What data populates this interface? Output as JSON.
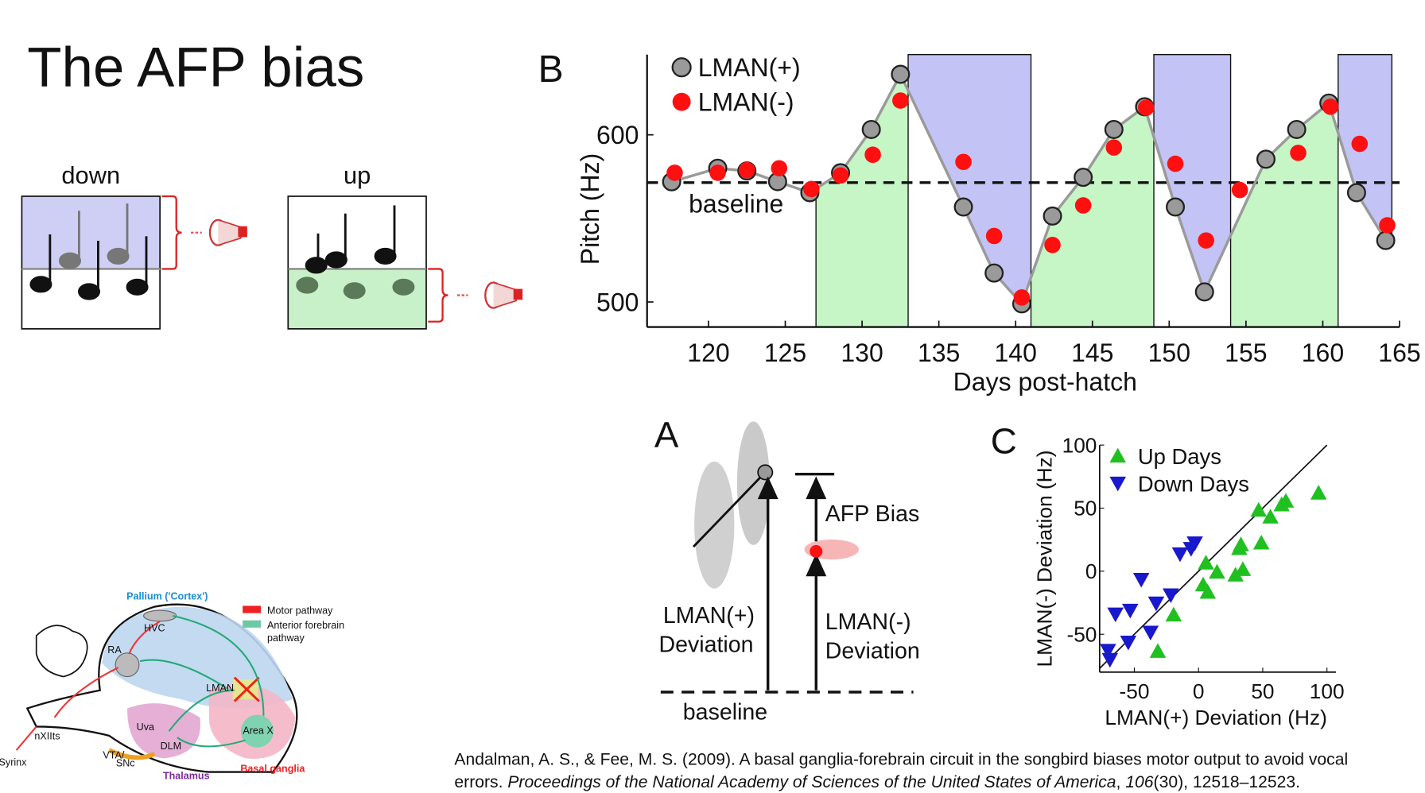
{
  "title": "The AFP bias",
  "schematic": {
    "down_label": "down",
    "up_label": "up"
  },
  "chart_data": [
    {
      "type": "line",
      "label": "B",
      "y_label": "Pitch (Hz)",
      "x_label": "Days post-hatch",
      "xlim": [
        116,
        165
      ],
      "ylim": [
        485,
        648
      ],
      "xticks": [
        120,
        125,
        130,
        135,
        140,
        145,
        150,
        155,
        160,
        165
      ],
      "yticks": [
        500,
        600
      ],
      "baseline": 571.4,
      "baseline_label": "baseline",
      "up_periods": [
        [
          127,
          133
        ],
        [
          141,
          149
        ],
        [
          154,
          161
        ]
      ],
      "down_periods": [
        [
          133,
          141
        ],
        [
          149,
          154
        ],
        [
          161,
          164.5
        ]
      ],
      "up_color": "#c6f5c6",
      "down_color": "#c3c3f5",
      "series": [
        {
          "name": "LMAN(+)",
          "color": "#9a9a9a",
          "connect": true,
          "x": [
            117.6,
            120.6,
            122.5,
            124.5,
            126.6,
            128.6,
            130.6,
            132.5,
            136.6,
            138.6,
            140.4,
            142.4,
            144.4,
            146.4,
            148.4,
            150.4,
            152.3,
            156.3,
            158.3,
            160.4,
            162.2,
            164.1
          ],
          "values": [
            571.9,
            580,
            578.4,
            572,
            565.4,
            577.3,
            603.2,
            636.2,
            556.8,
            517.3,
            498.9,
            551.4,
            574.6,
            603.2,
            616.8,
            556.8,
            506,
            585.4,
            603.2,
            619,
            565.4,
            536.8
          ]
        },
        {
          "name": "LMAN(-)",
          "color": "#ff1010",
          "connect": false,
          "x": [
            117.8,
            120.6,
            122.5,
            124.6,
            126.7,
            128.6,
            130.7,
            132.5,
            136.6,
            138.6,
            140.4,
            142.4,
            144.4,
            146.4,
            148.5,
            150.4,
            152.4,
            154.6,
            158.4,
            160.5,
            162.4,
            164.2
          ],
          "values": [
            577.3,
            577.3,
            578.9,
            580,
            567.6,
            575.7,
            588.1,
            620.5,
            583.8,
            539.5,
            502.7,
            534.1,
            557.8,
            592.4,
            616.2,
            582.7,
            536.8,
            567,
            589.2,
            616.8,
            594.6,
            545.9
          ]
        }
      ]
    },
    {
      "type": "scatter",
      "label": "C",
      "x_label": "LMAN(+) Deviation (Hz)",
      "y_label": "LMAN(-) Deviation (Hz)",
      "xlim": [
        -77,
        107
      ],
      "ylim": [
        -80,
        100
      ],
      "xticks": [
        -50,
        0,
        50,
        100
      ],
      "yticks": [
        -50,
        0,
        50,
        100
      ],
      "identity_line": true,
      "series": [
        {
          "name": "Up Days",
          "color": "#20c020",
          "marker": "triangle-up",
          "x": [
            93.5,
            68,
            64.7,
            56,
            46.8,
            48.9,
            33,
            31.7,
            34.5,
            28.8,
            14.4,
            5.8,
            7.2,
            3.6,
            -19.4,
            -31.7
          ],
          "values": [
            62,
            55.6,
            52.7,
            43,
            48.4,
            22.4,
            21,
            18,
            1.4,
            -3,
            -0.7,
            6.5,
            -16.6,
            -10.8,
            -34.7,
            -63.5
          ]
        },
        {
          "name": "Down Days",
          "color": "#1818cc",
          "marker": "triangle-down",
          "x": [
            -2.9,
            -14.4,
            -5.8,
            -44.6,
            -21.6,
            -33,
            -53.2,
            -64.7,
            -37.4,
            -54.7,
            -70.5,
            -69
          ],
          "values": [
            22.4,
            13.7,
            18,
            -6.5,
            -18.8,
            -25.3,
            -31,
            -34,
            -48.4,
            -56.3,
            -62.8,
            -70
          ]
        }
      ]
    }
  ],
  "panel_a": {
    "label": "A",
    "afp_bias": "AFP Bias",
    "plus_1": "LMAN(+)",
    "plus_2": "Deviation",
    "minus_1": "LMAN(-)",
    "minus_2": "Deviation",
    "baseline": "baseline"
  },
  "brain_diagram": {
    "pallium": "Pallium  ('Cortex')",
    "hvc": "HVC",
    "ra": "RA",
    "lman": "LMAN",
    "areax": "Area X",
    "uva": "Uva",
    "dlm": "DLM",
    "nxiits": "nXIIts",
    "syrinx": "Syrinx",
    "vta": "VTA/",
    "snc": "SNc",
    "thalamus": "Thalamus",
    "bg": "Basal ganglia",
    "motor": "Motor pathway",
    "afp_1": "Anterior  forebrain",
    "afp_2": "pathway"
  },
  "citation": {
    "line1": "Andalman, A. S., & Fee, M. S. (2009). A basal ganglia-forebrain circuit in the songbird biases motor output to avoid vocal",
    "line2_a": "errors. ",
    "journal": "Proceedings of the National Academy of Sciences of the United States of America",
    "line2_b": ", ",
    "volume": "106",
    "line2_c": "(30), 12518–12523."
  }
}
